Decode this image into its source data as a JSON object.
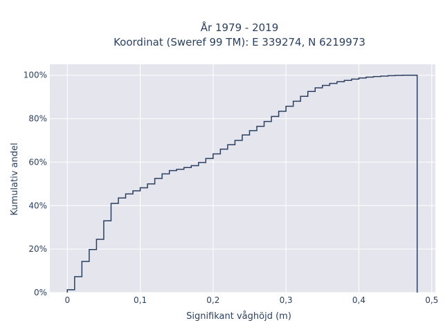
{
  "chart_data": {
    "type": "line",
    "subtype": "ecdf-step",
    "title_lines": [
      "År 1979 - 2019",
      "Koordinat (Sweref 99 TM): E 339274, N 6219973"
    ],
    "xlabel": "Signifikant våghöjd (m)",
    "ylabel": "Kumulativ andel",
    "xlim": [
      -0.024,
      0.505
    ],
    "ylim": [
      0,
      1.05
    ],
    "x_ticks": [
      0,
      0.1,
      0.2,
      0.3,
      0.4,
      0.5
    ],
    "x_tick_labels": [
      "0",
      "0,1",
      "0,2",
      "0,3",
      "0,4",
      "0,5"
    ],
    "y_ticks": [
      0,
      0.2,
      0.4,
      0.6,
      0.8,
      1.0
    ],
    "y_tick_labels": [
      "0%",
      "20%",
      "40%",
      "60%",
      "80%",
      "100%"
    ],
    "grid": true,
    "colors": {
      "plot_bg": "#e5e5ee",
      "grid": "#ffffff",
      "line": "#2a3f5f"
    },
    "x": [
      0,
      0.01,
      0.02,
      0.03,
      0.04,
      0.05,
      0.06,
      0.07,
      0.08,
      0.09,
      0.1,
      0.11,
      0.12,
      0.13,
      0.14,
      0.15,
      0.16,
      0.17,
      0.18,
      0.19,
      0.2,
      0.21,
      0.22,
      0.23,
      0.24,
      0.25,
      0.26,
      0.27,
      0.28,
      0.29,
      0.3,
      0.31,
      0.32,
      0.33,
      0.34,
      0.35,
      0.36,
      0.37,
      0.38,
      0.39,
      0.4,
      0.41,
      0.42,
      0.43,
      0.44,
      0.45,
      0.46,
      0.47,
      0.48
    ],
    "y": [
      0.013,
      0.073,
      0.143,
      0.198,
      0.245,
      0.33,
      0.41,
      0.435,
      0.454,
      0.468,
      0.482,
      0.5,
      0.525,
      0.546,
      0.561,
      0.567,
      0.575,
      0.584,
      0.598,
      0.617,
      0.638,
      0.66,
      0.68,
      0.7,
      0.725,
      0.745,
      0.765,
      0.787,
      0.81,
      0.834,
      0.857,
      0.88,
      0.903,
      0.925,
      0.942,
      0.953,
      0.962,
      0.97,
      0.976,
      0.982,
      0.987,
      0.991,
      0.994,
      0.996,
      0.998,
      0.999,
      1.0,
      1.0,
      1.0
    ]
  }
}
